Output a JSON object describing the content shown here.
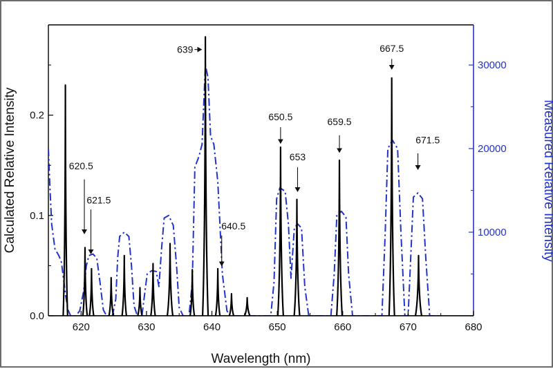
{
  "chart_data": {
    "type": "line",
    "title": "",
    "xlabel": "Wavelength (nm)",
    "ylabel_left": "Calculated Relative Intensity",
    "ylabel_right": "Measured Relative Intensity",
    "xlim": [
      615,
      680
    ],
    "ylim_left": [
      0,
      0.29
    ],
    "ylim_right": [
      0,
      34800
    ],
    "x_ticks": [
      620,
      630,
      640,
      650,
      660,
      670,
      680
    ],
    "x_tick_labels": [
      "620",
      "630",
      "640",
      "650",
      "660",
      "670",
      "680"
    ],
    "y_left_ticks": [
      0.0,
      0.1,
      0.2
    ],
    "y_left_tick_labels": [
      "0.0",
      "0.1",
      "0.2"
    ],
    "y_right_ticks": [
      10000,
      20000,
      30000
    ],
    "y_right_tick_labels": [
      "10000",
      "20000",
      "30000"
    ],
    "grid": false,
    "colors": {
      "calculated": "#000000",
      "measured": "#2233cc",
      "right_axis": "#2233cc"
    },
    "series": [
      {
        "axis": "left",
        "style": "solid",
        "peaks": [
          [
            617.6,
            0.23,
            0.12
          ],
          [
            620.6,
            0.068,
            0.12
          ],
          [
            621.6,
            0.047,
            0.12
          ],
          [
            624.6,
            0.038,
            0.12
          ],
          [
            626.6,
            0.06,
            0.12
          ],
          [
            629.0,
            0.028,
            0.12
          ],
          [
            631.0,
            0.052,
            0.12
          ],
          [
            633.6,
            0.072,
            0.15
          ],
          [
            637.0,
            0.046,
            0.12
          ],
          [
            639.0,
            0.278,
            0.15
          ],
          [
            640.9,
            0.047,
            0.12
          ],
          [
            643.0,
            0.022,
            0.12
          ],
          [
            645.4,
            0.018,
            0.15
          ],
          [
            650.5,
            0.168,
            0.15
          ],
          [
            653.0,
            0.116,
            0.15
          ],
          [
            659.5,
            0.155,
            0.15
          ],
          [
            667.5,
            0.237,
            0.15
          ],
          [
            671.6,
            0.06,
            0.17
          ]
        ]
      },
      {
        "axis": "right",
        "style": "dash-dot",
        "points": [
          [
            615.0,
            20000
          ],
          [
            615.2,
            16000
          ],
          [
            615.5,
            11000
          ],
          [
            616.0,
            8000
          ],
          [
            616.6,
            7200
          ],
          [
            617.0,
            6400
          ],
          [
            617.6,
            2600
          ],
          [
            618.0,
            700
          ],
          [
            618.4,
            0
          ],
          [
            619.2,
            0
          ],
          [
            619.8,
            600
          ],
          [
            620.4,
            3000
          ],
          [
            620.8,
            6000
          ],
          [
            621.2,
            7200
          ],
          [
            621.8,
            7400
          ],
          [
            622.4,
            6900
          ],
          [
            622.9,
            4000
          ],
          [
            623.4,
            700
          ],
          [
            623.9,
            0
          ],
          [
            624.8,
            0
          ],
          [
            625.3,
            2000
          ],
          [
            625.6,
            7000
          ],
          [
            625.9,
            9500
          ],
          [
            626.6,
            10000
          ],
          [
            627.3,
            9500
          ],
          [
            627.7,
            6000
          ],
          [
            628.1,
            1200
          ],
          [
            628.6,
            0
          ],
          [
            629.3,
            0
          ],
          [
            629.7,
            2500
          ],
          [
            630.1,
            5000
          ],
          [
            630.8,
            5400
          ],
          [
            631.5,
            5300
          ],
          [
            631.9,
            3500
          ],
          [
            632.3,
            8000
          ],
          [
            632.7,
            11700
          ],
          [
            633.4,
            12000
          ],
          [
            634.1,
            10800
          ],
          [
            634.6,
            6000
          ],
          [
            635.0,
            1000
          ],
          [
            635.6,
            0
          ],
          [
            636.5,
            0
          ],
          [
            637.0,
            4000
          ],
          [
            637.4,
            17800
          ],
          [
            638.0,
            19000
          ],
          [
            638.5,
            20500
          ],
          [
            639.0,
            30000
          ],
          [
            639.4,
            28500
          ],
          [
            639.8,
            21500
          ],
          [
            640.3,
            20500
          ],
          [
            640.9,
            16000
          ],
          [
            641.6,
            5000
          ],
          [
            642.3,
            600
          ],
          [
            642.8,
            0
          ],
          [
            649.0,
            0
          ],
          [
            649.5,
            4000
          ],
          [
            649.9,
            14000
          ],
          [
            650.4,
            15300
          ],
          [
            651.2,
            14900
          ],
          [
            651.7,
            11000
          ],
          [
            652.1,
            4500
          ],
          [
            652.6,
            10500
          ],
          [
            653.1,
            11000
          ],
          [
            653.7,
            10500
          ],
          [
            654.2,
            3500
          ],
          [
            654.8,
            0
          ],
          [
            658.2,
            0
          ],
          [
            658.7,
            5000
          ],
          [
            659.1,
            12000
          ],
          [
            659.8,
            12500
          ],
          [
            660.5,
            11800
          ],
          [
            660.9,
            5000
          ],
          [
            661.5,
            0
          ],
          [
            666.0,
            0
          ],
          [
            666.5,
            10000
          ],
          [
            666.9,
            20000
          ],
          [
            667.6,
            21000
          ],
          [
            668.4,
            20000
          ],
          [
            668.9,
            10000
          ],
          [
            669.5,
            0
          ],
          [
            670.0,
            0
          ],
          [
            670.4,
            7000
          ],
          [
            670.8,
            14200
          ],
          [
            671.5,
            14700
          ],
          [
            672.2,
            14000
          ],
          [
            672.7,
            7000
          ],
          [
            673.3,
            0
          ],
          [
            675.0,
            0
          ]
        ]
      }
    ],
    "annotations": [
      {
        "text": "620.5",
        "text_x": 620.0,
        "text_y": 0.146,
        "arrow_x": 620.5,
        "arrow_from": 0.136,
        "arrow_to": 0.082
      },
      {
        "text": "621.5",
        "text_x": 622.7,
        "text_y": 0.112,
        "arrow_x": 621.5,
        "arrow_from": 0.106,
        "arrow_to": 0.062
      },
      {
        "text": "639",
        "text_x": 635.9,
        "text_y": 0.262,
        "arrow_x": 639.0,
        "arrow_dir": "right",
        "arrow_from_x": 636.5,
        "arrow_to_x": 638.4,
        "arrow_y": 0.262
      },
      {
        "text": "640.5",
        "text_x": 643.3,
        "text_y": 0.086,
        "arrow_x": 641.5,
        "arrow_from": 0.08,
        "arrow_to": 0.05
      },
      {
        "text": "650.5",
        "text_x": 650.5,
        "text_y": 0.195,
        "arrow_x": 650.5,
        "arrow_from": 0.188,
        "arrow_to": 0.172
      },
      {
        "text": "653",
        "text_x": 653.1,
        "text_y": 0.155,
        "arrow_x": 653.1,
        "arrow_from": 0.148,
        "arrow_to": 0.124
      },
      {
        "text": "659.5",
        "text_x": 659.5,
        "text_y": 0.19,
        "arrow_x": 659.5,
        "arrow_from": 0.18,
        "arrow_to": 0.163
      },
      {
        "text": "667.5",
        "text_x": 667.5,
        "text_y": 0.263,
        "arrow_x": 667.5,
        "arrow_from": 0.256,
        "arrow_to": 0.246
      },
      {
        "text": "671.5",
        "text_x": 673.0,
        "text_y": 0.172,
        "arrow_x": 671.5,
        "arrow_from": 0.162,
        "arrow_to": 0.146
      }
    ]
  }
}
